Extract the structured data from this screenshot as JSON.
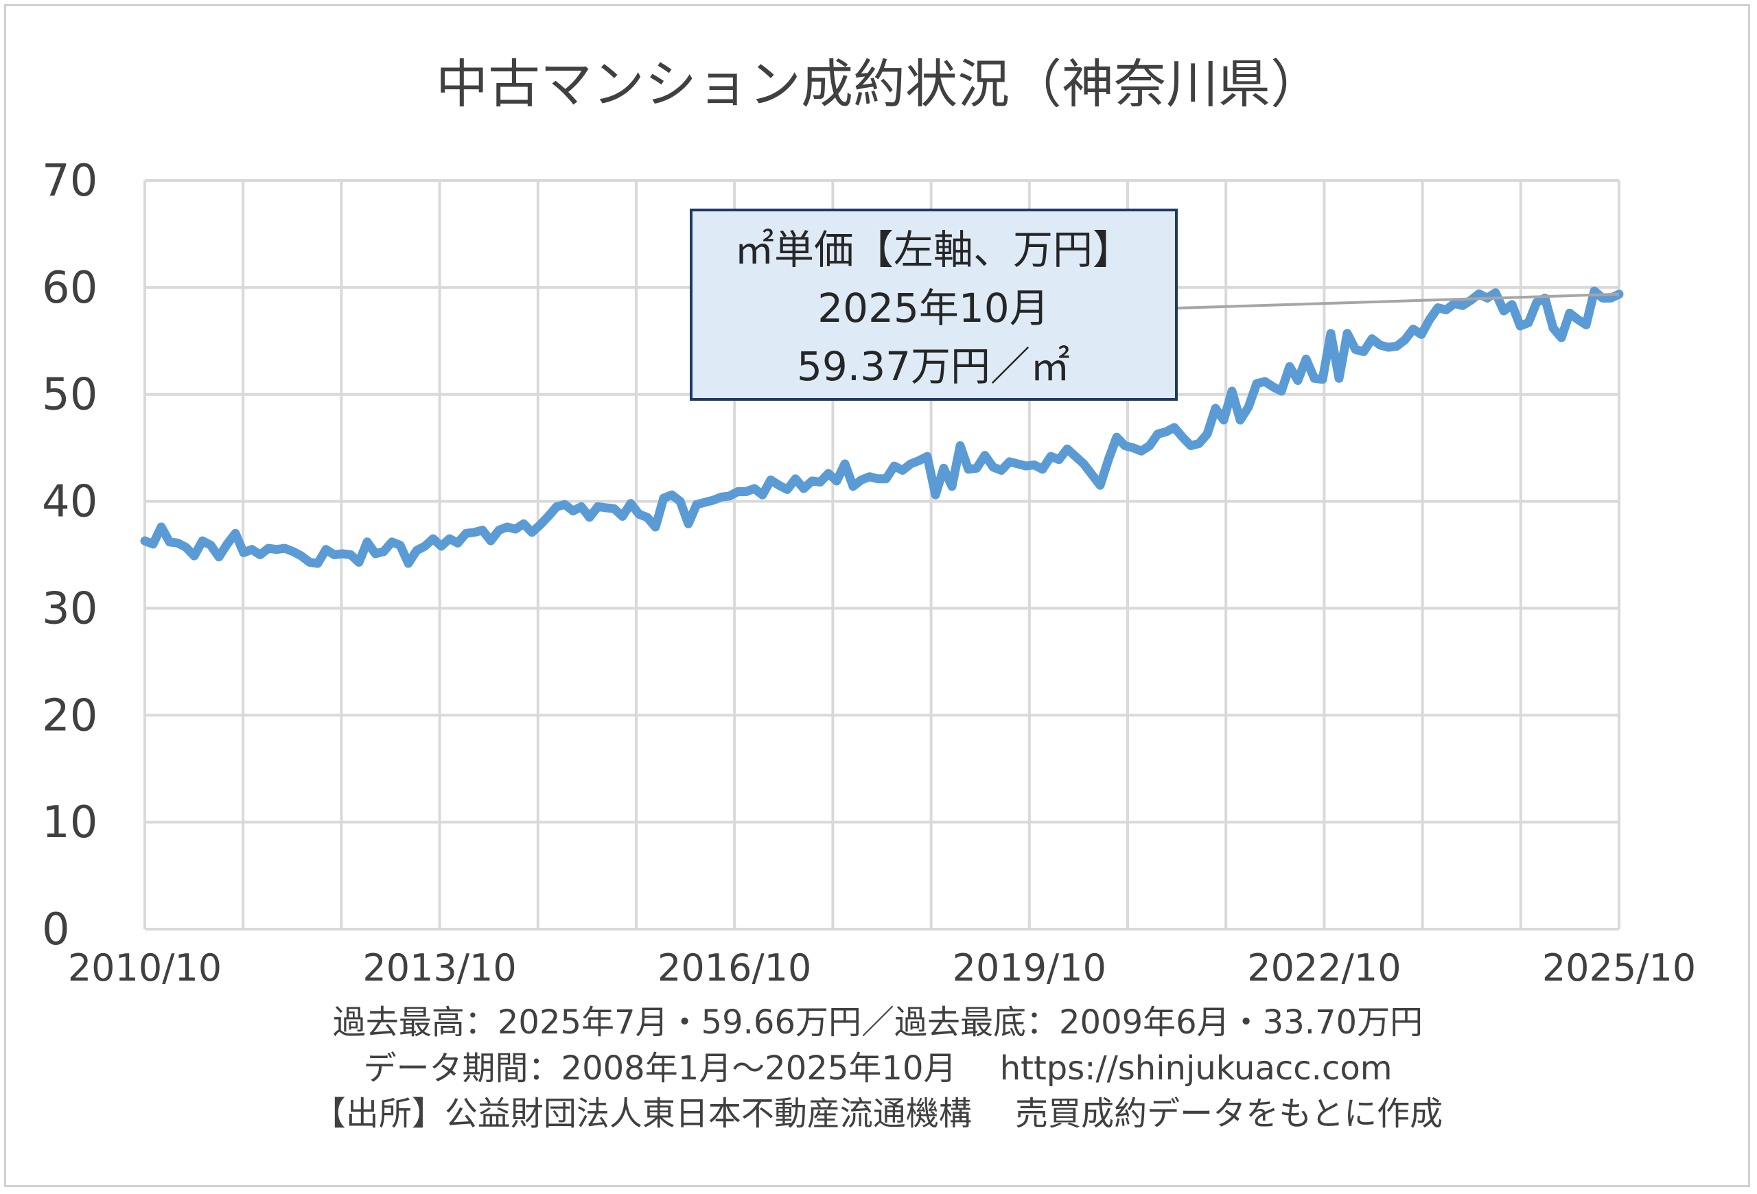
{
  "chart_data": {
    "type": "line",
    "title": "中古マンション成約状況（神奈川県）",
    "ylim": [
      0,
      70
    ],
    "y_ticks": [
      "0",
      "10",
      "20",
      "30",
      "40",
      "50",
      "60",
      "70"
    ],
    "x_tick_labels": [
      "2010/10",
      "2013/10",
      "2016/10",
      "2019/10",
      "2022/10",
      "2025/10"
    ],
    "x_start": "2010/10",
    "x_end": "2025/10",
    "grid": true,
    "line_color": "#5b9bd5",
    "series": [
      {
        "name": "㎡単価",
        "values": [
          36.3,
          36.0,
          37.6,
          36.2,
          36.1,
          35.7,
          34.9,
          36.3,
          35.9,
          34.8,
          36.0,
          37.0,
          35.2,
          35.5,
          35.0,
          35.6,
          35.5,
          35.6,
          35.3,
          34.9,
          34.3,
          34.2,
          35.5,
          35.0,
          35.1,
          35.0,
          34.3,
          36.2,
          35.1,
          35.3,
          36.2,
          35.9,
          34.2,
          35.4,
          35.8,
          36.5,
          35.8,
          36.5,
          36.1,
          37.0,
          37.1,
          37.3,
          36.3,
          37.3,
          37.6,
          37.4,
          37.9,
          37.1,
          37.8,
          38.6,
          39.5,
          39.7,
          39.1,
          39.5,
          38.5,
          39.5,
          39.4,
          39.3,
          38.6,
          39.8,
          38.8,
          38.5,
          37.6,
          40.3,
          40.6,
          40.0,
          37.9,
          39.7,
          39.9,
          40.1,
          40.4,
          40.5,
          40.9,
          40.9,
          41.2,
          40.6,
          42.0,
          41.5,
          41.1,
          42.1,
          41.2,
          41.9,
          41.8,
          42.6,
          41.9,
          43.5,
          41.4,
          42.0,
          42.3,
          42.1,
          42.1,
          43.3,
          42.9,
          43.5,
          43.8,
          44.2,
          40.6,
          43.1,
          41.4,
          45.2,
          43.0,
          43.1,
          44.3,
          43.2,
          42.9,
          43.7,
          43.5,
          43.3,
          43.4,
          43.0,
          44.2,
          43.9,
          44.9,
          44.2,
          43.5,
          42.5,
          41.5,
          43.9,
          46.0,
          45.2,
          45.0,
          44.7,
          45.2,
          46.3,
          46.5,
          46.9,
          46.0,
          45.2,
          45.4,
          46.3,
          48.7,
          47.6,
          50.3,
          47.6,
          48.8,
          51.0,
          51.2,
          50.7,
          50.3,
          52.6,
          51.3,
          53.3,
          51.5,
          51.4,
          55.7,
          51.5,
          55.7,
          54.2,
          54.0,
          55.2,
          54.6,
          54.4,
          54.5,
          55.1,
          56.1,
          55.6,
          57.0,
          58.1,
          57.9,
          58.5,
          58.3,
          58.8,
          59.4,
          59.0,
          59.5,
          57.8,
          58.4,
          56.4,
          56.7,
          58.6,
          59.0,
          56.2,
          55.3,
          57.6,
          57.0,
          56.5,
          59.66,
          59.0,
          59.0,
          59.37
        ]
      }
    ],
    "annotation": {
      "line1": "㎡単価【左軸、万円】",
      "line2": "2025年10月",
      "line3": "59.37万円／㎡",
      "target_value": 59.37,
      "fill": "#deebf7",
      "border": "#1f3864"
    }
  },
  "footnotes": {
    "line1": "過去最高：2025年7月・59.66万円／過去最底：2009年6月・33.70万円",
    "line2": "データ期間：2008年1月～2025年10月　 https://shinjukuacc.com",
    "line3": "【出所】公益財団法人東日本不動産流通機構　 売買成約データをもとに作成"
  }
}
